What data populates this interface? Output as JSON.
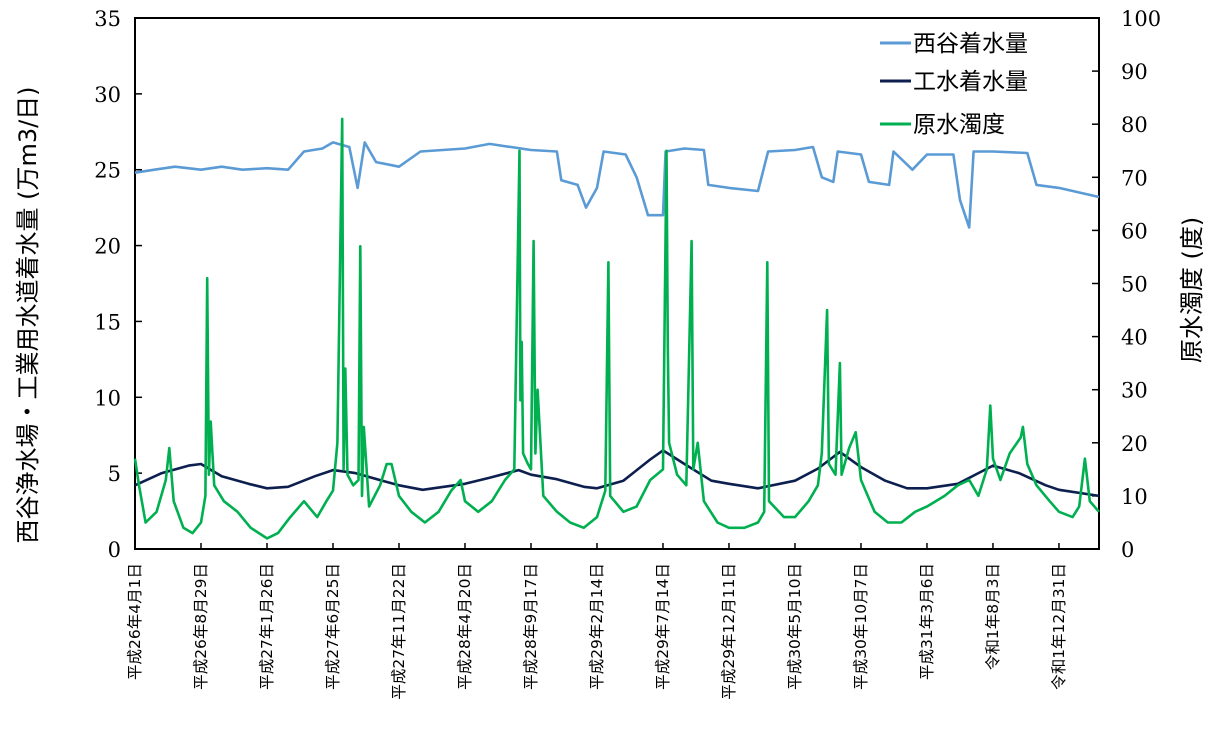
{
  "chart_data": {
    "type": "line",
    "y_left_label": "西谷浄水場・工業用水道着水量 (万m3/日)",
    "y_right_label": "原水濁度 (度)",
    "y_left_lim": [
      0,
      35
    ],
    "y_left_ticks": [
      "0",
      "5",
      "10",
      "15",
      "20",
      "25",
      "30",
      "35"
    ],
    "y_right_lim": [
      0,
      100
    ],
    "y_right_ticks": [
      "0",
      "10",
      "20",
      "30",
      "40",
      "50",
      "60",
      "70",
      "80",
      "90",
      "100"
    ],
    "x_start": "2014-04-01",
    "x_end": "2020-03-31",
    "x_ticks": [
      {
        "label": "平成26年4月1日",
        "date": "2014-04-01"
      },
      {
        "label": "平成26年8月29日",
        "date": "2014-08-29"
      },
      {
        "label": "平成27年1月26日",
        "date": "2015-01-26"
      },
      {
        "label": "平成27年6月25日",
        "date": "2015-06-25"
      },
      {
        "label": "平成27年11月22日",
        "date": "2015-11-22"
      },
      {
        "label": "平成28年4月20日",
        "date": "2016-04-20"
      },
      {
        "label": "平成28年9月17日",
        "date": "2016-09-17"
      },
      {
        "label": "平成29年2月14日",
        "date": "2017-02-14"
      },
      {
        "label": "平成29年7月14日",
        "date": "2017-07-14"
      },
      {
        "label": "平成29年12月11日",
        "date": "2017-12-11"
      },
      {
        "label": "平成30年5月10日",
        "date": "2018-05-10"
      },
      {
        "label": "平成30年10月7日",
        "date": "2018-10-07"
      },
      {
        "label": "平成31年3月6日",
        "date": "2019-03-06"
      },
      {
        "label": "令和1年8月3日",
        "date": "2019-08-03"
      },
      {
        "label": "令和1年12月31日",
        "date": "2019-12-31"
      }
    ],
    "legend_position": "top-right",
    "series": [
      {
        "name": "西谷着水量",
        "axis": "left",
        "color": "#5b9bd5",
        "points": [
          [
            "2014-04-01",
            24.8
          ],
          [
            "2014-05-15",
            25.0
          ],
          [
            "2014-07-01",
            25.2
          ],
          [
            "2014-08-29",
            25.0
          ],
          [
            "2014-10-15",
            25.2
          ],
          [
            "2014-12-01",
            25.0
          ],
          [
            "2015-01-26",
            25.1
          ],
          [
            "2015-03-15",
            25.0
          ],
          [
            "2015-04-20",
            26.2
          ],
          [
            "2015-06-01",
            26.4
          ],
          [
            "2015-06-25",
            26.8
          ],
          [
            "2015-08-01",
            26.5
          ],
          [
            "2015-08-20",
            23.8
          ],
          [
            "2015-09-05",
            26.8
          ],
          [
            "2015-10-01",
            25.5
          ],
          [
            "2015-11-22",
            25.2
          ],
          [
            "2016-01-10",
            26.2
          ],
          [
            "2016-04-20",
            26.4
          ],
          [
            "2016-06-15",
            26.7
          ],
          [
            "2016-09-17",
            26.3
          ],
          [
            "2016-11-15",
            26.2
          ],
          [
            "2016-11-25",
            24.3
          ],
          [
            "2017-01-01",
            24.0
          ],
          [
            "2017-01-20",
            22.5
          ],
          [
            "2017-02-14",
            23.8
          ],
          [
            "2017-03-01",
            26.2
          ],
          [
            "2017-04-20",
            26.0
          ],
          [
            "2017-05-15",
            24.5
          ],
          [
            "2017-06-10",
            22.0
          ],
          [
            "2017-07-14",
            22.0
          ],
          [
            "2017-07-20",
            26.2
          ],
          [
            "2017-09-01",
            26.4
          ],
          [
            "2017-10-15",
            26.3
          ],
          [
            "2017-10-25",
            24.0
          ],
          [
            "2017-12-11",
            23.8
          ],
          [
            "2018-02-15",
            23.6
          ],
          [
            "2018-03-10",
            26.2
          ],
          [
            "2018-05-10",
            26.3
          ],
          [
            "2018-06-20",
            26.5
          ],
          [
            "2018-07-10",
            24.5
          ],
          [
            "2018-08-05",
            24.2
          ],
          [
            "2018-08-15",
            26.2
          ],
          [
            "2018-10-07",
            26.0
          ],
          [
            "2018-10-25",
            24.2
          ],
          [
            "2018-12-10",
            24.0
          ],
          [
            "2018-12-20",
            26.2
          ],
          [
            "2019-02-01",
            25.0
          ],
          [
            "2019-03-06",
            26.0
          ],
          [
            "2019-05-05",
            26.0
          ],
          [
            "2019-05-20",
            23.0
          ],
          [
            "2019-06-10",
            21.2
          ],
          [
            "2019-06-20",
            26.2
          ],
          [
            "2019-08-03",
            26.2
          ],
          [
            "2019-10-20",
            26.1
          ],
          [
            "2019-11-10",
            24.0
          ],
          [
            "2019-12-31",
            23.8
          ],
          [
            "2020-03-31",
            23.2
          ]
        ]
      },
      {
        "name": "工水着水量",
        "axis": "left",
        "color": "#0d1f4f",
        "points": [
          [
            "2014-04-01",
            4.2
          ],
          [
            "2014-06-01",
            5.0
          ],
          [
            "2014-08-01",
            5.5
          ],
          [
            "2014-08-29",
            5.6
          ],
          [
            "2014-10-15",
            4.8
          ],
          [
            "2014-12-15",
            4.3
          ],
          [
            "2015-01-26",
            4.0
          ],
          [
            "2015-03-15",
            4.1
          ],
          [
            "2015-05-15",
            4.8
          ],
          [
            "2015-06-25",
            5.2
          ],
          [
            "2015-08-15",
            5.0
          ],
          [
            "2015-10-15",
            4.5
          ],
          [
            "2015-11-22",
            4.2
          ],
          [
            "2016-01-15",
            3.9
          ],
          [
            "2016-04-20",
            4.3
          ],
          [
            "2016-06-15",
            4.7
          ],
          [
            "2016-08-20",
            5.2
          ],
          [
            "2016-09-17",
            4.9
          ],
          [
            "2016-11-15",
            4.6
          ],
          [
            "2017-01-15",
            4.1
          ],
          [
            "2017-02-14",
            4.0
          ],
          [
            "2017-04-15",
            4.5
          ],
          [
            "2017-06-15",
            5.9
          ],
          [
            "2017-07-14",
            6.5
          ],
          [
            "2017-09-01",
            5.6
          ],
          [
            "2017-11-01",
            4.5
          ],
          [
            "2017-12-11",
            4.3
          ],
          [
            "2018-02-15",
            4.0
          ],
          [
            "2018-05-10",
            4.5
          ],
          [
            "2018-07-01",
            5.3
          ],
          [
            "2018-08-20",
            6.4
          ],
          [
            "2018-10-07",
            5.4
          ],
          [
            "2018-12-01",
            4.5
          ],
          [
            "2019-01-20",
            4.0
          ],
          [
            "2019-03-06",
            4.0
          ],
          [
            "2019-05-15",
            4.3
          ],
          [
            "2019-07-01",
            5.0
          ],
          [
            "2019-08-03",
            5.5
          ],
          [
            "2019-10-01",
            5.0
          ],
          [
            "2019-12-01",
            4.2
          ],
          [
            "2019-12-31",
            3.9
          ],
          [
            "2020-03-31",
            3.5
          ]
        ]
      },
      {
        "name": "原水濁度",
        "axis": "right",
        "color": "#00b050",
        "points": [
          [
            "2014-04-01",
            17
          ],
          [
            "2014-04-10",
            12
          ],
          [
            "2014-04-25",
            5
          ],
          [
            "2014-05-20",
            7
          ],
          [
            "2014-06-10",
            13
          ],
          [
            "2014-06-18",
            19
          ],
          [
            "2014-06-28",
            9
          ],
          [
            "2014-07-20",
            4
          ],
          [
            "2014-08-10",
            3
          ],
          [
            "2014-08-29",
            5
          ],
          [
            "2014-09-08",
            10
          ],
          [
            "2014-09-12",
            51
          ],
          [
            "2014-09-16",
            14
          ],
          [
            "2014-09-20",
            24
          ],
          [
            "2014-09-28",
            12
          ],
          [
            "2014-10-20",
            9
          ],
          [
            "2014-11-20",
            7
          ],
          [
            "2014-12-20",
            4
          ],
          [
            "2015-01-26",
            2
          ],
          [
            "2015-02-20",
            3
          ],
          [
            "2015-03-20",
            6
          ],
          [
            "2015-04-20",
            9
          ],
          [
            "2015-05-20",
            6
          ],
          [
            "2015-06-10",
            9
          ],
          [
            "2015-06-25",
            11
          ],
          [
            "2015-07-05",
            20
          ],
          [
            "2015-07-16",
            81
          ],
          [
            "2015-07-19",
            15
          ],
          [
            "2015-07-23",
            34
          ],
          [
            "2015-07-28",
            14
          ],
          [
            "2015-08-10",
            12
          ],
          [
            "2015-08-22",
            13
          ],
          [
            "2015-08-26",
            57
          ],
          [
            "2015-08-30",
            10
          ],
          [
            "2015-09-03",
            23
          ],
          [
            "2015-09-15",
            8
          ],
          [
            "2015-10-10",
            12
          ],
          [
            "2015-10-25",
            16
          ],
          [
            "2015-11-05",
            16
          ],
          [
            "2015-11-22",
            10
          ],
          [
            "2015-12-20",
            7
          ],
          [
            "2016-01-20",
            5
          ],
          [
            "2016-02-20",
            7
          ],
          [
            "2016-03-20",
            11
          ],
          [
            "2016-04-10",
            13
          ],
          [
            "2016-04-20",
            9
          ],
          [
            "2016-05-20",
            7
          ],
          [
            "2016-06-20",
            9
          ],
          [
            "2016-07-20",
            13
          ],
          [
            "2016-08-10",
            15
          ],
          [
            "2016-08-22",
            75
          ],
          [
            "2016-08-24",
            28
          ],
          [
            "2016-08-27",
            39
          ],
          [
            "2016-08-30",
            18
          ],
          [
            "2016-09-10",
            16
          ],
          [
            "2016-09-17",
            15
          ],
          [
            "2016-09-23",
            58
          ],
          [
            "2016-09-27",
            18
          ],
          [
            "2016-10-02",
            30
          ],
          [
            "2016-10-15",
            10
          ],
          [
            "2016-11-15",
            7
          ],
          [
            "2016-12-15",
            5
          ],
          [
            "2017-01-15",
            4
          ],
          [
            "2017-02-14",
            6
          ],
          [
            "2017-03-05",
            11
          ],
          [
            "2017-03-12",
            54
          ],
          [
            "2017-03-16",
            10
          ],
          [
            "2017-04-15",
            7
          ],
          [
            "2017-05-15",
            8
          ],
          [
            "2017-06-15",
            13
          ],
          [
            "2017-07-14",
            15
          ],
          [
            "2017-07-22",
            75
          ],
          [
            "2017-07-25",
            38
          ],
          [
            "2017-07-28",
            20
          ],
          [
            "2017-08-15",
            14
          ],
          [
            "2017-09-05",
            12
          ],
          [
            "2017-09-17",
            58
          ],
          [
            "2017-09-21",
            15
          ],
          [
            "2017-10-01",
            20
          ],
          [
            "2017-10-15",
            9
          ],
          [
            "2017-11-15",
            5
          ],
          [
            "2017-12-11",
            4
          ],
          [
            "2018-01-15",
            4
          ],
          [
            "2018-02-15",
            5
          ],
          [
            "2018-03-01",
            7
          ],
          [
            "2018-03-08",
            54
          ],
          [
            "2018-03-12",
            9
          ],
          [
            "2018-04-15",
            6
          ],
          [
            "2018-05-10",
            6
          ],
          [
            "2018-06-10",
            9
          ],
          [
            "2018-07-01",
            12
          ],
          [
            "2018-07-10",
            18
          ],
          [
            "2018-07-22",
            45
          ],
          [
            "2018-07-26",
            16
          ],
          [
            "2018-08-10",
            14
          ],
          [
            "2018-08-20",
            35
          ],
          [
            "2018-08-24",
            14
          ],
          [
            "2018-09-10",
            19
          ],
          [
            "2018-09-25",
            22
          ],
          [
            "2018-10-07",
            13
          ],
          [
            "2018-11-07",
            7
          ],
          [
            "2018-12-07",
            5
          ],
          [
            "2019-01-07",
            5
          ],
          [
            "2019-02-07",
            7
          ],
          [
            "2019-03-06",
            8
          ],
          [
            "2019-04-15",
            10
          ],
          [
            "2019-05-15",
            12
          ],
          [
            "2019-06-10",
            13
          ],
          [
            "2019-07-01",
            10
          ],
          [
            "2019-07-20",
            15
          ],
          [
            "2019-07-28",
            27
          ],
          [
            "2019-08-03",
            17
          ],
          [
            "2019-08-20",
            13
          ],
          [
            "2019-09-10",
            18
          ],
          [
            "2019-10-05",
            21
          ],
          [
            "2019-10-10",
            23
          ],
          [
            "2019-10-20",
            16
          ],
          [
            "2019-11-10",
            12
          ],
          [
            "2019-12-10",
            9
          ],
          [
            "2019-12-31",
            7
          ],
          [
            "2020-01-31",
            6
          ],
          [
            "2020-02-15",
            8
          ],
          [
            "2020-02-28",
            17
          ],
          [
            "2020-03-10",
            9
          ],
          [
            "2020-03-31",
            7
          ]
        ]
      }
    ]
  }
}
